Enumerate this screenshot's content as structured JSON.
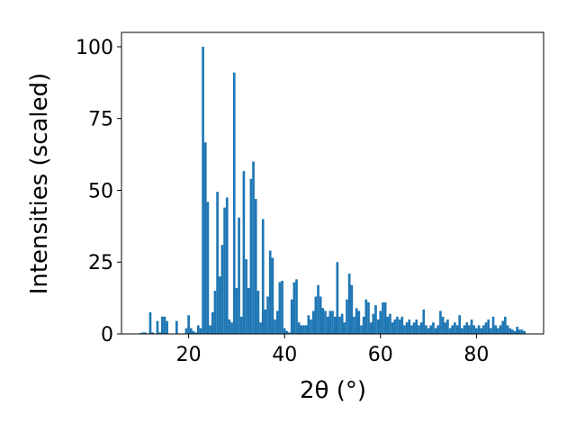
{
  "chart_data": {
    "type": "bar",
    "x_label": "2θ (°)",
    "y_label": "Intensities (scaled)",
    "color": "#1f77b4",
    "xlim": [
      6,
      94
    ],
    "ylim": [
      0,
      105
    ],
    "xticks": [
      20,
      40,
      60,
      80
    ],
    "yticks": [
      0,
      25,
      50,
      75,
      100
    ],
    "x": [
      10,
      10.5,
      11,
      11.5,
      12,
      12.5,
      13,
      13.5,
      14,
      14.5,
      15,
      15.5,
      16,
      16.5,
      17,
      17.5,
      18,
      18.5,
      19,
      19.5,
      20,
      20.5,
      21,
      21.5,
      22,
      22.5,
      23,
      23.5,
      24,
      24.5,
      25,
      25.5,
      26,
      26.5,
      27,
      27.5,
      28,
      28.5,
      29,
      29.5,
      30,
      30.5,
      31,
      31.5,
      32,
      32.5,
      33,
      33.5,
      34,
      34.5,
      35,
      35.5,
      36,
      36.5,
      37,
      37.5,
      38,
      38.5,
      39,
      39.5,
      40,
      40.5,
      41,
      41.5,
      42,
      42.5,
      43,
      43.5,
      44,
      44.5,
      45,
      45.5,
      46,
      46.5,
      47,
      47.5,
      48,
      48.5,
      49,
      49.5,
      50,
      50.5,
      51,
      51.5,
      52,
      52.5,
      53,
      53.5,
      54,
      54.5,
      55,
      55.5,
      56,
      56.5,
      57,
      57.5,
      58,
      58.5,
      59,
      59.5,
      60,
      60.5,
      61,
      61.5,
      62,
      62.5,
      63,
      63.5,
      64,
      64.5,
      65,
      65.5,
      66,
      66.5,
      67,
      67.5,
      68,
      68.5,
      69,
      69.5,
      70,
      70.5,
      71,
      71.5,
      72,
      72.5,
      73,
      73.5,
      74,
      74.5,
      75,
      75.5,
      76,
      76.5,
      77,
      77.5,
      78,
      78.5,
      79,
      79.5,
      80,
      80.5,
      81,
      81.5,
      82,
      82.5,
      83,
      83.5,
      84,
      84.5,
      85,
      85.5,
      86,
      86.5,
      87,
      87.5,
      88,
      88.5,
      89,
      89.5,
      90
    ],
    "values": [
      0.3,
      0.5,
      0.5,
      0,
      7.5,
      0.5,
      0,
      4.5,
      0.5,
      6,
      6,
      4.5,
      0,
      0,
      0,
      4.5,
      0,
      0,
      0,
      2,
      6.5,
      2,
      1,
      0.5,
      3,
      2,
      100,
      66.7,
      46,
      3,
      7.5,
      15,
      49.5,
      20,
      31,
      44,
      47.5,
      5,
      4,
      91,
      16,
      40.5,
      6,
      56.7,
      26,
      16,
      54,
      60,
      47,
      15,
      4,
      40,
      8.5,
      13,
      29,
      26.5,
      5,
      8,
      18,
      18.5,
      2,
      1,
      0.5,
      12,
      18,
      19,
      4,
      3,
      3,
      3,
      6.5,
      5,
      8,
      13,
      17,
      13,
      9,
      8,
      6,
      8,
      8,
      6,
      25,
      6,
      7,
      4,
      12,
      21,
      17,
      6,
      9,
      8,
      3,
      6,
      12,
      11,
      4,
      7,
      10,
      5,
      8,
      11,
      11,
      6,
      7,
      4,
      5,
      6,
      5,
      6,
      3,
      4,
      5,
      3,
      4,
      5,
      3,
      4,
      8.5,
      3,
      2,
      3,
      4,
      2,
      3,
      8,
      6,
      4,
      5,
      2,
      3,
      4,
      3,
      6.5,
      2,
      3,
      4,
      3,
      5,
      3,
      2,
      3,
      2,
      3,
      4,
      5,
      2,
      6,
      3,
      2,
      3,
      4.5,
      6,
      3,
      2,
      1.5,
      1,
      2.5,
      1.5,
      1.5,
      1
    ]
  }
}
